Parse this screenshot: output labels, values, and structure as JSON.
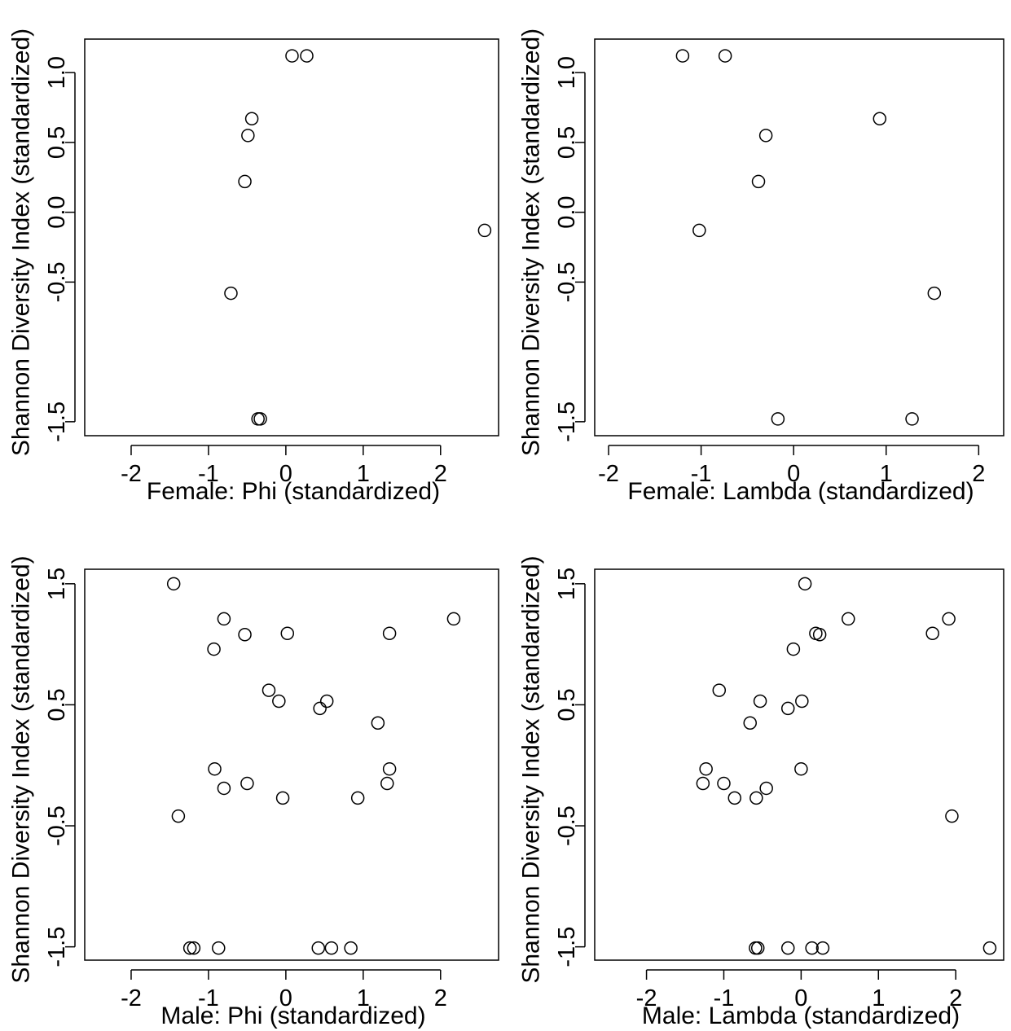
{
  "chart_data": [
    {
      "type": "scatter",
      "xlabel": "Female: Phi (standardized)",
      "ylabel": "Shannon Diversity Index (standardized)",
      "xlim": [
        -2.6,
        2.75
      ],
      "ylim": [
        -1.6,
        1.24
      ],
      "xticks": [
        -2,
        -1,
        0,
        1,
        2
      ],
      "yticks": [
        -1.5,
        -0.5,
        0.0,
        0.5,
        1.0
      ],
      "xtick_labels": [
        "-2",
        "-1",
        "0",
        "1",
        "2"
      ],
      "ytick_labels": [
        "-1.5",
        "-0.5",
        "0.0",
        "0.5",
        "1.0"
      ],
      "grid": false,
      "points": [
        {
          "x": 0.08,
          "y": 1.12
        },
        {
          "x": 0.27,
          "y": 1.12
        },
        {
          "x": -0.44,
          "y": 0.67
        },
        {
          "x": -0.49,
          "y": 0.55
        },
        {
          "x": -0.53,
          "y": 0.22
        },
        {
          "x": 2.57,
          "y": -0.13
        },
        {
          "x": -0.71,
          "y": -0.58
        },
        {
          "x": -0.36,
          "y": -1.48
        },
        {
          "x": -0.33,
          "y": -1.48
        }
      ]
    },
    {
      "type": "scatter",
      "xlabel": "Female: Lambda (standardized)",
      "ylabel": "Shannon Diversity Index (standardized)",
      "xlim": [
        -2.15,
        2.27
      ],
      "ylim": [
        -1.6,
        1.24
      ],
      "xticks": [
        -2,
        -1,
        0,
        1,
        2
      ],
      "yticks": [
        -1.5,
        -0.5,
        0.0,
        0.5,
        1.0
      ],
      "xtick_labels": [
        "-2",
        "-1",
        "0",
        "1",
        "2"
      ],
      "ytick_labels": [
        "-1.5",
        "-0.5",
        "0.0",
        "0.5",
        "1.0"
      ],
      "grid": false,
      "points": [
        {
          "x": -1.2,
          "y": 1.12
        },
        {
          "x": -0.74,
          "y": 1.12
        },
        {
          "x": 0.93,
          "y": 0.67
        },
        {
          "x": -0.3,
          "y": 0.55
        },
        {
          "x": -0.38,
          "y": 0.22
        },
        {
          "x": -1.02,
          "y": -0.13
        },
        {
          "x": 1.52,
          "y": -0.58
        },
        {
          "x": -0.17,
          "y": -1.48
        },
        {
          "x": 1.28,
          "y": -1.48
        }
      ]
    },
    {
      "type": "scatter",
      "xlabel": "Male: Phi (standardized)",
      "ylabel": "Shannon Diversity Index (standardized)",
      "xlim": [
        -2.6,
        2.75
      ],
      "ylim": [
        -1.61,
        1.62
      ],
      "xticks": [
        -2,
        -1,
        0,
        1,
        2
      ],
      "yticks": [
        -1.5,
        -0.5,
        0.5,
        1.5
      ],
      "xtick_labels": [
        "-2",
        "-1",
        "0",
        "1",
        "2"
      ],
      "ytick_labels": [
        "-1.5",
        "-0.5",
        "0.5",
        "1.5"
      ],
      "grid": false,
      "points": [
        {
          "x": -1.45,
          "y": 1.5
        },
        {
          "x": -0.8,
          "y": 1.21
        },
        {
          "x": -0.53,
          "y": 1.08
        },
        {
          "x": 0.02,
          "y": 1.09
        },
        {
          "x": 1.34,
          "y": 1.09
        },
        {
          "x": 2.17,
          "y": 1.21
        },
        {
          "x": -0.93,
          "y": 0.96
        },
        {
          "x": -0.22,
          "y": 0.62
        },
        {
          "x": -0.09,
          "y": 0.53
        },
        {
          "x": 0.53,
          "y": 0.53
        },
        {
          "x": 0.44,
          "y": 0.47
        },
        {
          "x": 1.19,
          "y": 0.35
        },
        {
          "x": -0.92,
          "y": -0.03
        },
        {
          "x": 1.34,
          "y": -0.03
        },
        {
          "x": -0.5,
          "y": -0.15
        },
        {
          "x": 1.31,
          "y": -0.15
        },
        {
          "x": -0.8,
          "y": -0.19
        },
        {
          "x": -0.04,
          "y": -0.27
        },
        {
          "x": 0.93,
          "y": -0.27
        },
        {
          "x": -1.39,
          "y": -0.42
        },
        {
          "x": -1.24,
          "y": -1.51
        },
        {
          "x": -1.19,
          "y": -1.51
        },
        {
          "x": -0.87,
          "y": -1.51
        },
        {
          "x": 0.42,
          "y": -1.51
        },
        {
          "x": 0.59,
          "y": -1.51
        },
        {
          "x": 0.84,
          "y": -1.51
        }
      ]
    },
    {
      "type": "scatter",
      "xlabel": "Male: Lambda (standardized)",
      "ylabel": "Shannon Diversity Index (standardized)",
      "xlim": [
        -2.67,
        2.62
      ],
      "ylim": [
        -1.61,
        1.62
      ],
      "xticks": [
        -2,
        -1,
        0,
        1,
        2
      ],
      "yticks": [
        -1.5,
        -0.5,
        0.5,
        1.5
      ],
      "xtick_labels": [
        "-2",
        "-1",
        "0",
        "1",
        "2"
      ],
      "ytick_labels": [
        "-1.5",
        "-0.5",
        "0.5",
        "1.5"
      ],
      "grid": false,
      "points": [
        {
          "x": 0.05,
          "y": 1.5
        },
        {
          "x": 0.61,
          "y": 1.21
        },
        {
          "x": 1.91,
          "y": 1.21
        },
        {
          "x": 0.19,
          "y": 1.09
        },
        {
          "x": 0.24,
          "y": 1.08
        },
        {
          "x": 1.7,
          "y": 1.09
        },
        {
          "x": -0.1,
          "y": 0.96
        },
        {
          "x": -1.06,
          "y": 0.62
        },
        {
          "x": -0.53,
          "y": 0.53
        },
        {
          "x": 0.01,
          "y": 0.53
        },
        {
          "x": -0.17,
          "y": 0.47
        },
        {
          "x": -0.66,
          "y": 0.35
        },
        {
          "x": -1.23,
          "y": -0.03
        },
        {
          "x": 0.0,
          "y": -0.03
        },
        {
          "x": -1.27,
          "y": -0.15
        },
        {
          "x": -1.0,
          "y": -0.15
        },
        {
          "x": -0.45,
          "y": -0.19
        },
        {
          "x": -0.86,
          "y": -0.27
        },
        {
          "x": -0.58,
          "y": -0.27
        },
        {
          "x": 1.95,
          "y": -0.42
        },
        {
          "x": -0.59,
          "y": -1.51
        },
        {
          "x": -0.56,
          "y": -1.51
        },
        {
          "x": -0.17,
          "y": -1.51
        },
        {
          "x": 0.14,
          "y": -1.51
        },
        {
          "x": 0.28,
          "y": -1.51
        },
        {
          "x": 2.44,
          "y": -1.51
        }
      ]
    }
  ]
}
